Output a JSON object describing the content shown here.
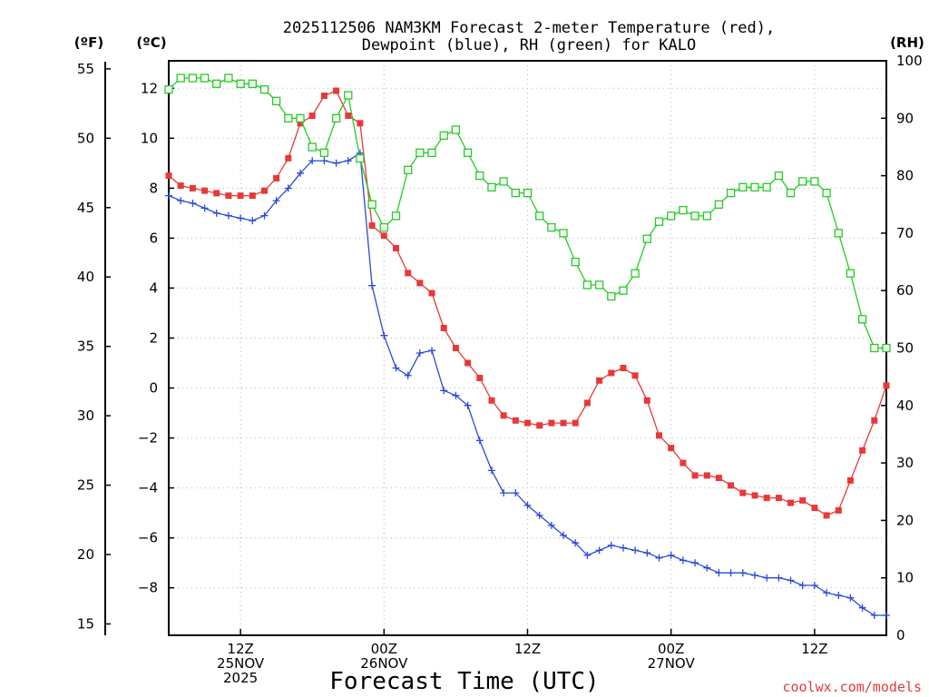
{
  "chart_data": {
    "type": "line",
    "title_line1": "2025112506 NAM3KM Forecast 2-meter Temperature (red),",
    "title_line2": "Dewpoint (blue), RH (green) for KALO",
    "left_unit_f": "(ºF)",
    "left_unit_c": "(ºC)",
    "right_unit": "(RH)",
    "xlabel": "Forecast Time (UTC)",
    "credit": "coolwx.com/models",
    "x_range_hours": [
      6,
      66
    ],
    "c_range": [
      -9.9,
      13.1
    ],
    "rh_range": [
      0,
      100
    ],
    "c_ticks": [
      12,
      10,
      8,
      6,
      4,
      2,
      0,
      -2,
      -4,
      -6,
      -8
    ],
    "f_ticks": [
      55,
      50,
      45,
      40,
      35,
      30,
      25,
      20,
      15
    ],
    "rh_ticks": [
      100,
      90,
      80,
      70,
      60,
      50,
      40,
      30,
      20,
      10,
      0
    ],
    "x_ticks": [
      {
        "hour": 12,
        "lines": [
          "12Z",
          "25NOV",
          "2025"
        ]
      },
      {
        "hour": 24,
        "lines": [
          "00Z",
          "26NOV"
        ]
      },
      {
        "hour": 36,
        "lines": [
          "12Z"
        ]
      },
      {
        "hour": 48,
        "lines": [
          "00Z",
          "27NOV"
        ]
      },
      {
        "hour": 60,
        "lines": [
          "12Z"
        ]
      }
    ],
    "series": [
      {
        "name": "2-meter Temperature",
        "units": "°C",
        "color": "#e83838",
        "marker": "square-filled",
        "values": [
          8.5,
          8.1,
          8.0,
          7.9,
          7.8,
          7.7,
          7.7,
          7.7,
          7.9,
          8.4,
          9.2,
          10.6,
          10.9,
          11.7,
          11.9,
          10.9,
          10.6,
          6.5,
          6.1,
          5.6,
          4.6,
          4.2,
          3.8,
          2.4,
          1.6,
          1.0,
          0.4,
          -0.5,
          -1.1,
          -1.3,
          -1.4,
          -1.5,
          -1.4,
          -1.4,
          -1.4,
          -0.6,
          0.3,
          0.6,
          0.8,
          0.5,
          -0.5,
          -1.9,
          -2.4,
          -3.0,
          -3.5,
          -3.5,
          -3.6,
          -3.9,
          -4.2,
          -4.3,
          -4.4,
          -4.4,
          -4.6,
          -4.5,
          -4.8,
          -5.1,
          -4.9,
          -3.7,
          -2.5,
          -1.3,
          0.1
        ]
      },
      {
        "name": "Dewpoint",
        "units": "°C",
        "color": "#2a4ad8",
        "marker": "plus",
        "values": [
          7.7,
          7.5,
          7.4,
          7.2,
          7.0,
          6.9,
          6.8,
          6.7,
          6.9,
          7.5,
          8.0,
          8.6,
          9.1,
          9.1,
          9.0,
          9.1,
          9.4,
          4.1,
          2.1,
          0.8,
          0.5,
          1.4,
          1.5,
          -0.1,
          -0.3,
          -0.7,
          -2.1,
          -3.3,
          -4.2,
          -4.2,
          -4.7,
          -5.1,
          -5.5,
          -5.9,
          -6.2,
          -6.7,
          -6.5,
          -6.3,
          -6.4,
          -6.5,
          -6.6,
          -6.8,
          -6.7,
          -6.9,
          -7.0,
          -7.2,
          -7.4,
          -7.4,
          -7.4,
          -7.5,
          -7.6,
          -7.6,
          -7.7,
          -7.9,
          -7.9,
          -8.2,
          -8.3,
          -8.4,
          -8.8,
          -9.1,
          -9.1
        ]
      },
      {
        "name": "RH",
        "units": "%",
        "color": "#22cc22",
        "marker": "square-open",
        "values": [
          95,
          97,
          97,
          97,
          96,
          97,
          96,
          96,
          95,
          93,
          90,
          90,
          85,
          84,
          90,
          94,
          83,
          75,
          71,
          73,
          81,
          84,
          84,
          87,
          88,
          84,
          80,
          78,
          79,
          77,
          77,
          73,
          71,
          70,
          65,
          61,
          61,
          59,
          60,
          63,
          69,
          72,
          73,
          74,
          73,
          73,
          75,
          77,
          78,
          78,
          78,
          80,
          77,
          79,
          79,
          77,
          70,
          63,
          55,
          50,
          50
        ]
      }
    ]
  }
}
